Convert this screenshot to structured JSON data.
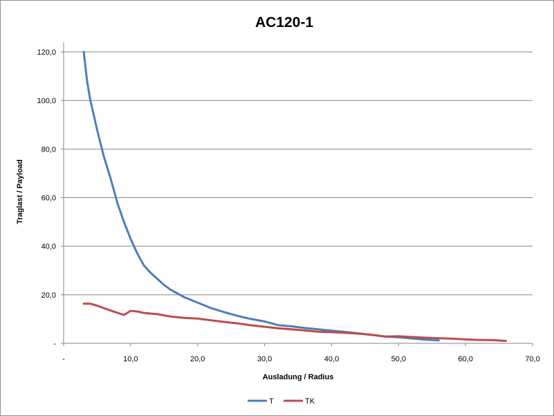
{
  "chart_data": {
    "type": "line",
    "title": "AC120-1",
    "xlabel": "Ausladung / Radius",
    "ylabel": "Traglast / Payload",
    "xlim": [
      0,
      70
    ],
    "ylim": [
      0,
      120
    ],
    "x_ticks": [
      "-",
      "10,0",
      "20,0",
      "30,0",
      "40,0",
      "50,0",
      "60,0",
      "70,0"
    ],
    "y_ticks": [
      "-",
      "20,0",
      "40,0",
      "60,0",
      "80,0",
      "100,0",
      "120,0"
    ],
    "grid": "horizontal",
    "legend_position": "bottom",
    "series": [
      {
        "name": "T",
        "color": "#4a7ebb",
        "points": [
          [
            3,
            120
          ],
          [
            3.5,
            108
          ],
          [
            4,
            100
          ],
          [
            5,
            88
          ],
          [
            6,
            77
          ],
          [
            7,
            68
          ],
          [
            8,
            58
          ],
          [
            9,
            50
          ],
          [
            10,
            43
          ],
          [
            11,
            37
          ],
          [
            12,
            32
          ],
          [
            13,
            29
          ],
          [
            14,
            26.5
          ],
          [
            15,
            24
          ],
          [
            16,
            22
          ],
          [
            17,
            20.5
          ],
          [
            18,
            19
          ],
          [
            20,
            16.8
          ],
          [
            22,
            14.5
          ],
          [
            24,
            12.8
          ],
          [
            26,
            11.3
          ],
          [
            28,
            10
          ],
          [
            30,
            9
          ],
          [
            32,
            7.5
          ],
          [
            34,
            7
          ],
          [
            36,
            6.3
          ],
          [
            38,
            5.8
          ],
          [
            40,
            5.2
          ],
          [
            42,
            4.7
          ],
          [
            44,
            4.1
          ],
          [
            46,
            3.5
          ],
          [
            48,
            2.8
          ],
          [
            50,
            2.5
          ],
          [
            52,
            2
          ],
          [
            54,
            1.5
          ],
          [
            56,
            1.2
          ]
        ]
      },
      {
        "name": "TK",
        "color": "#be4b48",
        "points": [
          [
            3,
            16.3
          ],
          [
            4,
            16.3
          ],
          [
            5,
            15.5
          ],
          [
            6,
            14.5
          ],
          [
            7,
            13.5
          ],
          [
            8,
            12.6
          ],
          [
            9,
            11.7
          ],
          [
            9.5,
            12.5
          ],
          [
            10,
            13.4
          ],
          [
            11,
            13.1
          ],
          [
            12,
            12.5
          ],
          [
            14,
            12
          ],
          [
            16,
            11
          ],
          [
            18,
            10.5
          ],
          [
            20,
            10.2
          ],
          [
            22,
            9.5
          ],
          [
            24,
            8.8
          ],
          [
            26,
            8.2
          ],
          [
            28,
            7.4
          ],
          [
            30,
            6.8
          ],
          [
            32,
            6.2
          ],
          [
            34,
            5.8
          ],
          [
            36,
            5.3
          ],
          [
            38,
            4.8
          ],
          [
            40,
            4.6
          ],
          [
            42,
            4.3
          ],
          [
            44,
            4
          ],
          [
            46,
            3.5
          ],
          [
            48,
            2.8
          ],
          [
            50,
            2.9
          ],
          [
            52,
            2.6
          ],
          [
            54,
            2.3
          ],
          [
            56,
            2.1
          ],
          [
            58,
            1.9
          ],
          [
            60,
            1.6
          ],
          [
            62,
            1.4
          ],
          [
            64,
            1.3
          ],
          [
            66,
            1
          ]
        ]
      }
    ]
  }
}
